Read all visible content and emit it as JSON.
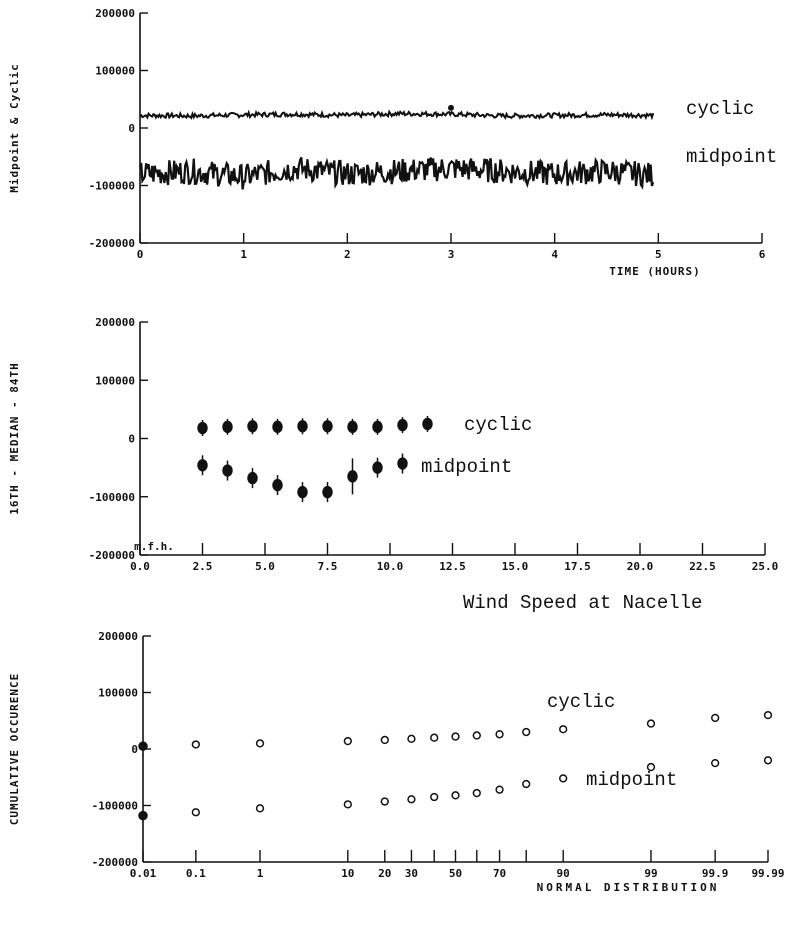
{
  "chart_data": [
    {
      "type": "line",
      "ylabel": "Midpoint & Cyclic",
      "xlabel": "TIME (HOURS)",
      "xlim": [
        0,
        6
      ],
      "ylim": [
        -200000,
        200000
      ],
      "xticks": [
        "0",
        "1",
        "2",
        "3",
        "4",
        "5",
        "6"
      ],
      "yticks": [
        "200000",
        "100000",
        "0",
        "-100000",
        "-200000"
      ],
      "series": [
        {
          "name": "cyclic",
          "x": [
            0,
            0.5,
            1,
            1.5,
            2,
            2.5,
            3,
            3.5,
            4,
            4.5,
            4.95
          ],
          "values": [
            22000,
            21000,
            23000,
            24000,
            22000,
            25000,
            24000,
            21000,
            22000,
            23000,
            22000
          ]
        },
        {
          "name": "midpoint",
          "x": [
            0,
            0.5,
            1,
            1.5,
            2,
            2.5,
            3,
            3.5,
            4,
            4.5,
            4.95
          ],
          "values": [
            -80000,
            -75000,
            -85000,
            -70000,
            -80000,
            -75000,
            -70000,
            -75000,
            -80000,
            -75000,
            -82000
          ]
        }
      ]
    },
    {
      "type": "scatter",
      "ylabel": "16TH - MEDIAN - 84TH",
      "xlabel": "Wind Speed at Nacelle",
      "corner_label": "m.f.h.",
      "xlim": [
        0,
        25
      ],
      "ylim": [
        -200000,
        200000
      ],
      "xticks": [
        "0.0",
        "2.5",
        "5.0",
        "7.5",
        "10.0",
        "12.5",
        "15.0",
        "17.5",
        "20.0",
        "22.5",
        "25.0"
      ],
      "yticks": [
        "200000",
        "100000",
        "0",
        "-100000",
        "-200000"
      ],
      "series": [
        {
          "name": "cyclic",
          "x": [
            2.5,
            3.5,
            4.5,
            5.5,
            6.5,
            7.5,
            8.5,
            9.5,
            10.5,
            11.5
          ],
          "values": [
            18000,
            20000,
            21000,
            20000,
            21000,
            21000,
            20000,
            20000,
            23000,
            25000
          ]
        },
        {
          "name": "midpoint",
          "x": [
            2.5,
            3.5,
            4.5,
            5.5,
            6.5,
            7.5,
            8.5,
            9.5,
            10.5
          ],
          "values": [
            -46000,
            -55000,
            -68000,
            -80000,
            -92000,
            -92000,
            -65000,
            -50000,
            -43000
          ]
        }
      ]
    },
    {
      "type": "scatter",
      "ylabel": "CUMULATIVE OCCURENCE",
      "xlabel": "NORMAL DISTRIBUTION",
      "ylim": [
        -200000,
        200000
      ],
      "yticks": [
        "200000",
        "100000",
        "0",
        "-100000",
        "-200000"
      ],
      "xticks": [
        "0.01",
        "0.1",
        "1",
        "10",
        "20",
        "30",
        "50",
        "70",
        "90",
        "99",
        "99.9",
        "99.99"
      ],
      "series": [
        {
          "name": "cyclic",
          "x": [
            0.01,
            0.1,
            1,
            10,
            20,
            30,
            40,
            50,
            60,
            70,
            80,
            90,
            99,
            99.9,
            99.99
          ],
          "values": [
            5000,
            8000,
            10000,
            14000,
            16000,
            18000,
            20000,
            22000,
            24000,
            26000,
            30000,
            35000,
            45000,
            55000,
            60000
          ]
        },
        {
          "name": "midpoint",
          "x": [
            0.01,
            0.1,
            1,
            10,
            20,
            30,
            40,
            50,
            60,
            70,
            80,
            90,
            99,
            99.9,
            99.99
          ],
          "values": [
            -118000,
            -112000,
            -105000,
            -98000,
            -93000,
            -89000,
            -85000,
            -82000,
            -78000,
            -72000,
            -62000,
            -52000,
            -32000,
            -25000,
            -20000
          ]
        }
      ]
    }
  ]
}
